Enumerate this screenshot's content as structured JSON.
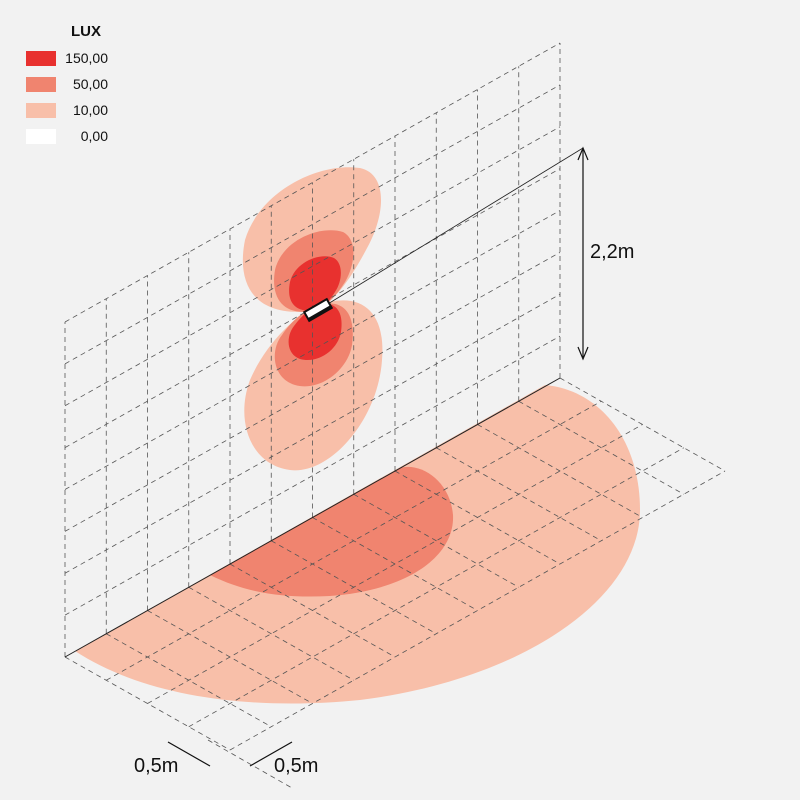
{
  "legend": {
    "title": "LUX",
    "items": [
      {
        "label": "150,00",
        "color": "#e8312f"
      },
      {
        "label": "50,00",
        "color": "#f0846f"
      },
      {
        "label": "10,00",
        "color": "#f8bfa9"
      },
      {
        "label": "0,00",
        "color": "#ffffff"
      }
    ]
  },
  "dimensions": {
    "height": "2,2m",
    "depth": "0,5m",
    "width": "0,5m"
  }
}
